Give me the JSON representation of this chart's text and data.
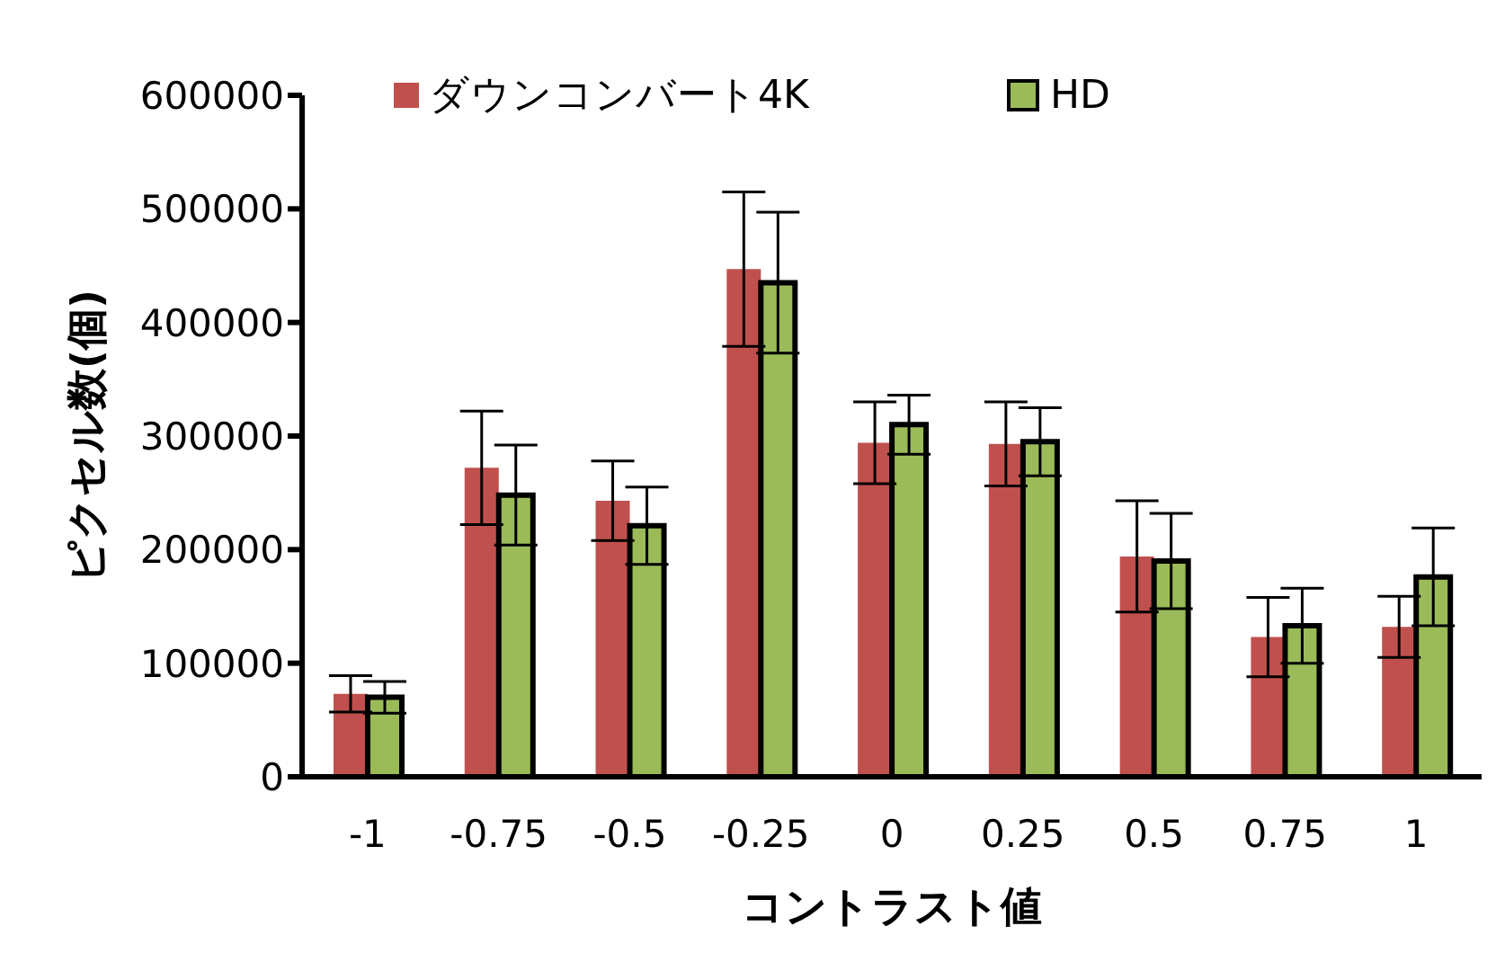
{
  "chart_data": {
    "type": "bar",
    "xlabel": "コントラスト値",
    "ylabel": "ピクセル数(個)",
    "categories": [
      "-1",
      "-0.75",
      "-0.5",
      "-0.25",
      "0",
      "0.25",
      "0.5",
      "0.75",
      "1"
    ],
    "series": [
      {
        "name": "ダウンコンバート4K",
        "color": "#c0504d",
        "values": [
          73000,
          272000,
          243000,
          447000,
          294000,
          293000,
          194000,
          123000,
          132000
        ],
        "errors": [
          16000,
          50000,
          35000,
          68000,
          36000,
          37000,
          49000,
          35000,
          27000
        ]
      },
      {
        "name": "HD",
        "color": "#9bbb59",
        "values": [
          70000,
          248000,
          221000,
          435000,
          310000,
          295000,
          190000,
          133000,
          176000
        ],
        "errors": [
          14000,
          44000,
          34000,
          62000,
          26000,
          30000,
          42000,
          33000,
          43000
        ]
      }
    ],
    "ylim": [
      0,
      600000
    ],
    "yticks": [
      0,
      100000,
      200000,
      300000,
      400000,
      500000,
      600000
    ],
    "grid": false,
    "legend": "top"
  }
}
